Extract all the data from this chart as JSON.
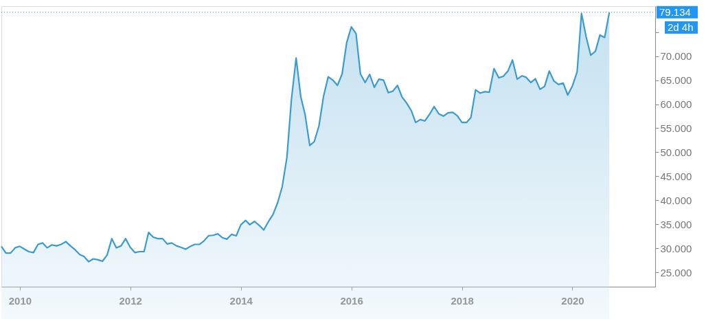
{
  "chart_data": {
    "type": "area",
    "x": [
      "2009-09",
      "2009-10",
      "2009-11",
      "2009-12",
      "2010-01",
      "2010-02",
      "2010-03",
      "2010-04",
      "2010-05",
      "2010-06",
      "2010-07",
      "2010-08",
      "2010-09",
      "2010-10",
      "2010-11",
      "2010-12",
      "2011-01",
      "2011-02",
      "2011-03",
      "2011-04",
      "2011-05",
      "2011-06",
      "2011-07",
      "2011-08",
      "2011-09",
      "2011-10",
      "2011-11",
      "2011-12",
      "2012-01",
      "2012-02",
      "2012-03",
      "2012-04",
      "2012-05",
      "2012-06",
      "2012-07",
      "2012-08",
      "2012-09",
      "2012-10",
      "2012-11",
      "2012-12",
      "2013-01",
      "2013-02",
      "2013-03",
      "2013-04",
      "2013-05",
      "2013-06",
      "2013-07",
      "2013-08",
      "2013-09",
      "2013-10",
      "2013-11",
      "2013-12",
      "2014-01",
      "2014-02",
      "2014-03",
      "2014-04",
      "2014-05",
      "2014-06",
      "2014-07",
      "2014-08",
      "2014-09",
      "2014-10",
      "2014-11",
      "2014-12",
      "2015-01",
      "2015-02",
      "2015-03",
      "2015-04",
      "2015-05",
      "2015-06",
      "2015-07",
      "2015-08",
      "2015-09",
      "2015-10",
      "2015-11",
      "2015-12",
      "2016-01",
      "2016-02",
      "2016-03",
      "2016-04",
      "2016-05",
      "2016-06",
      "2016-07",
      "2016-08",
      "2016-09",
      "2016-10",
      "2016-11",
      "2016-12",
      "2017-01",
      "2017-02",
      "2017-03",
      "2017-04",
      "2017-05",
      "2017-06",
      "2017-07",
      "2017-08",
      "2017-09",
      "2017-10",
      "2017-11",
      "2017-12",
      "2018-01",
      "2018-02",
      "2018-03",
      "2018-04",
      "2018-05",
      "2018-06",
      "2018-07",
      "2018-08",
      "2018-09",
      "2018-10",
      "2018-11",
      "2018-12",
      "2019-01",
      "2019-02",
      "2019-03",
      "2019-04",
      "2019-05",
      "2019-06",
      "2019-07",
      "2019-08",
      "2019-09",
      "2019-10",
      "2019-11",
      "2019-12",
      "2020-01",
      "2020-02",
      "2020-03",
      "2020-04",
      "2020-05",
      "2020-06",
      "2020-07",
      "2020-08",
      "2020-09"
    ],
    "series": [
      {
        "color": "#3a9bcf",
        "values": [
          30.4,
          29.0,
          29.0,
          30.1,
          30.4,
          29.8,
          29.3,
          29.1,
          30.8,
          31.1,
          30.1,
          30.7,
          30.5,
          30.8,
          31.4,
          30.5,
          29.7,
          28.7,
          28.3,
          27.2,
          27.8,
          27.6,
          27.3,
          28.6,
          32.0,
          30.1,
          30.5,
          32.0,
          30.2,
          29.1,
          29.3,
          29.3,
          33.3,
          32.3,
          32.0,
          32.0,
          30.9,
          31.1,
          30.5,
          30.2,
          29.8,
          30.4,
          30.8,
          30.8,
          31.5,
          32.6,
          32.7,
          33.0,
          32.2,
          31.9,
          32.9,
          32.6,
          34.9,
          35.8,
          34.9,
          35.6,
          34.8,
          33.8,
          35.5,
          37.0,
          39.5,
          42.8,
          48.9,
          61.0,
          69.6,
          61.5,
          57.9,
          51.4,
          52.2,
          55.5,
          61.6,
          65.7,
          65.0,
          63.9,
          66.3,
          72.8,
          76.1,
          74.7,
          66.3,
          64.5,
          66.2,
          63.5,
          65.2,
          65.0,
          62.4,
          62.7,
          63.9,
          61.5,
          60.2,
          58.6,
          56.2,
          56.8,
          56.5,
          57.9,
          59.5,
          58.0,
          57.5,
          58.2,
          58.3,
          57.6,
          56.2,
          56.2,
          57.2,
          63.0,
          62.3,
          62.6,
          62.5,
          67.4,
          65.5,
          65.8,
          66.9,
          69.2,
          65.2,
          65.9,
          65.6,
          64.5,
          65.3,
          63.1,
          63.7,
          66.9,
          64.8,
          64.1,
          64.4,
          61.9,
          63.8,
          66.7,
          78.9,
          74.0,
          70.2,
          71.0,
          74.4,
          73.9,
          79.1
        ]
      }
    ],
    "xlim": [
      "2009-09",
      "2021-07"
    ],
    "xticks": [
      {
        "value": "2010-01",
        "label": "2010"
      },
      {
        "value": "2012-01",
        "label": "2012"
      },
      {
        "value": "2014-01",
        "label": "2014"
      },
      {
        "value": "2016-01",
        "label": "2016"
      },
      {
        "value": "2018-01",
        "label": "2018"
      },
      {
        "value": "2020-01",
        "label": "2020"
      }
    ],
    "ylim": [
      22,
      80.4
    ],
    "yticks": [
      {
        "value": 25,
        "label": "25.000"
      },
      {
        "value": 30,
        "label": "30.000"
      },
      {
        "value": 35,
        "label": "35.000"
      },
      {
        "value": 40,
        "label": "40.000"
      },
      {
        "value": 45,
        "label": "45.000"
      },
      {
        "value": 50,
        "label": "50.000"
      },
      {
        "value": 55,
        "label": "55.000"
      },
      {
        "value": 60,
        "label": "60.000"
      },
      {
        "value": 65,
        "label": "65.000"
      },
      {
        "value": 70,
        "label": "70.000"
      },
      {
        "value": 75,
        "label": null
      }
    ],
    "ref_lines": [
      {
        "axis": "y",
        "value": 79.134,
        "label": "79.134",
        "color": "#2196f3",
        "line_style": "dotted"
      }
    ],
    "annotations": [
      "2d 4h"
    ],
    "grid": false
  }
}
